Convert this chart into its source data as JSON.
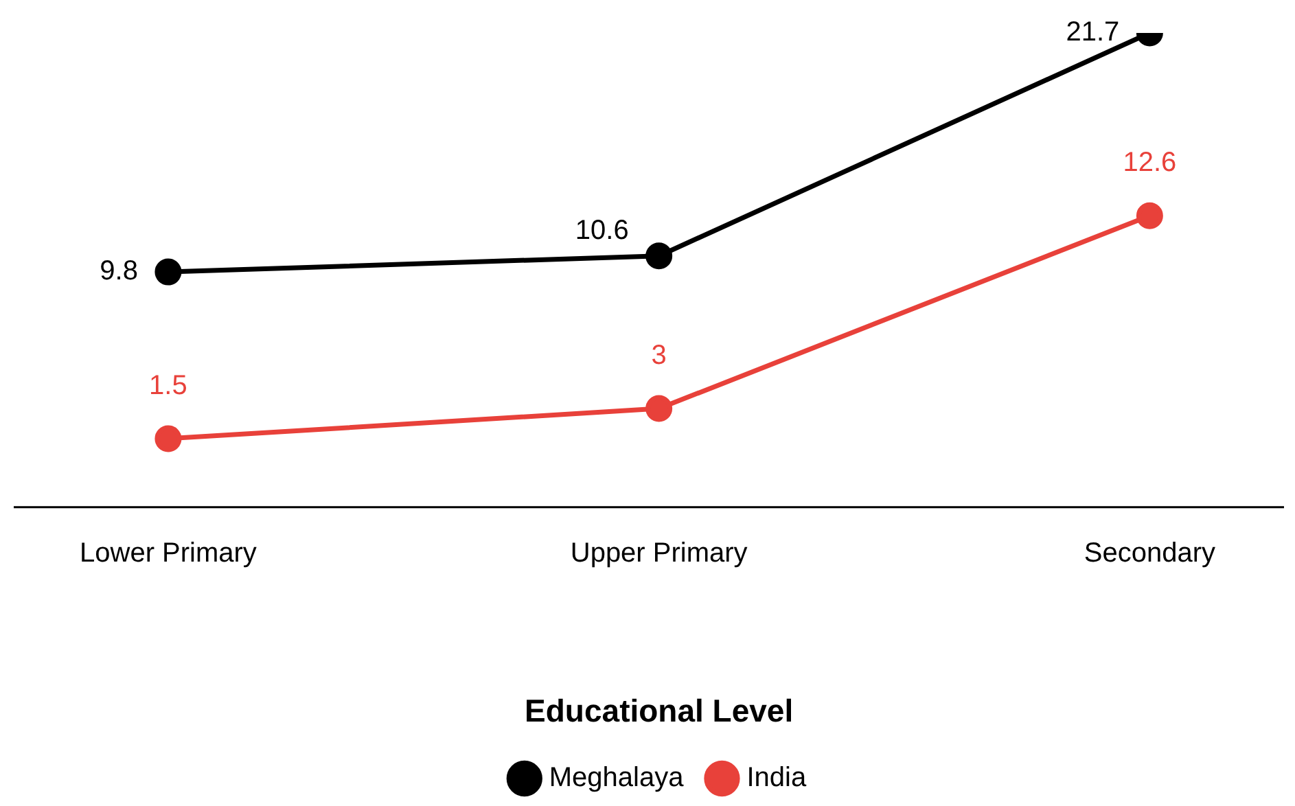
{
  "chart_data": {
    "type": "line",
    "xlabel": "Educational Level",
    "categories": [
      "Lower Primary",
      "Upper Primary",
      "Secondary"
    ],
    "series": [
      {
        "name": "Meghalaya",
        "color": "#000000",
        "values": [
          9.8,
          10.6,
          21.7
        ]
      },
      {
        "name": "India",
        "color": "#e8413a",
        "values": [
          1.5,
          3,
          12.6
        ]
      }
    ],
    "data_labels": true,
    "marker": "circle",
    "legend": "bottom",
    "grid": false
  }
}
